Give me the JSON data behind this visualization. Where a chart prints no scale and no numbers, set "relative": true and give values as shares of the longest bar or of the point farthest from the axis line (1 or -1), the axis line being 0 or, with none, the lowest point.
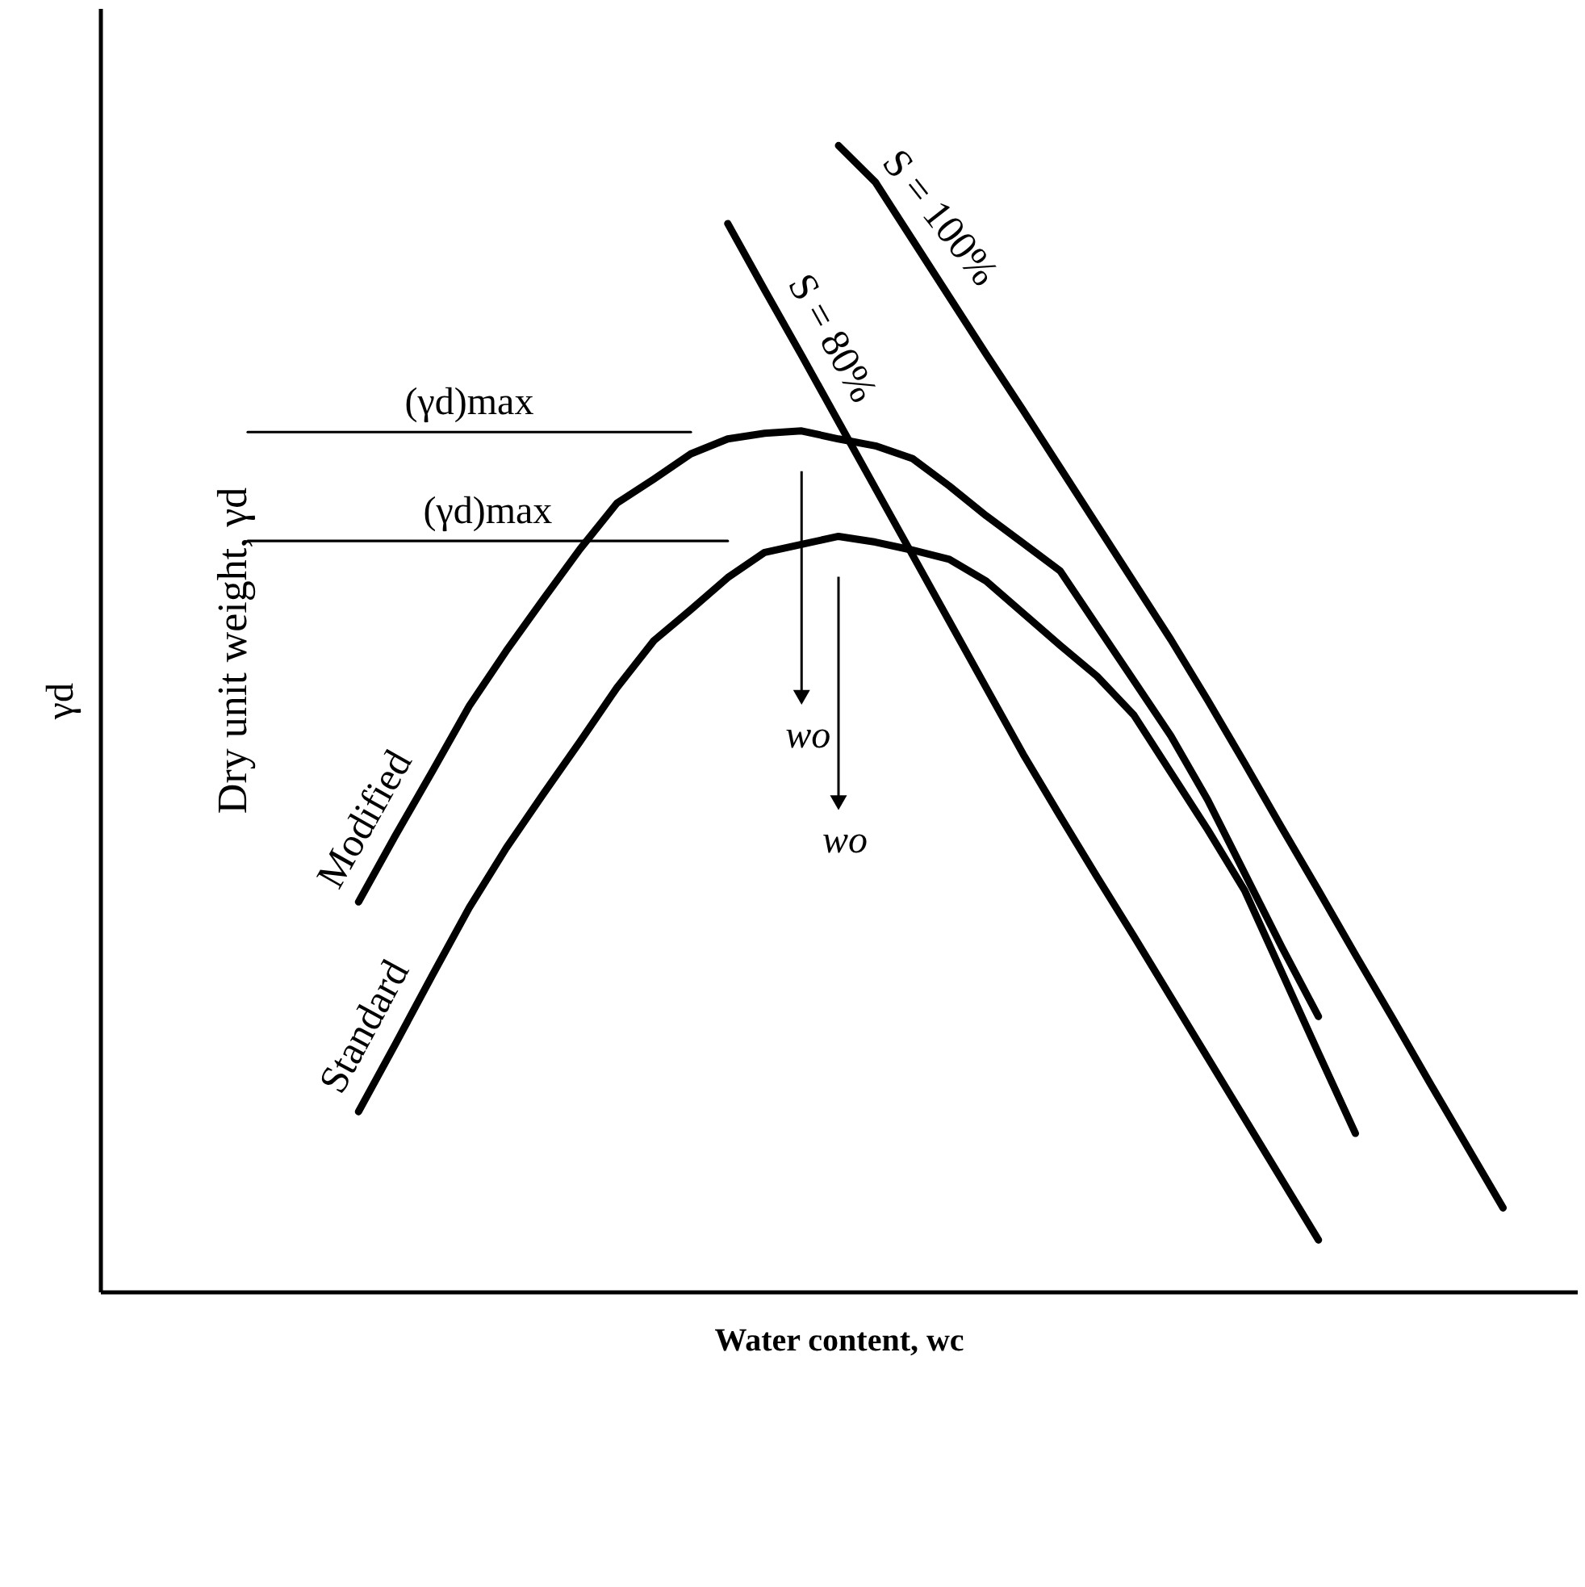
{
  "chart_data": {
    "type": "line",
    "relative": true,
    "xlabel": "Water content, wc",
    "ylabel": "Dry unit weight, γd",
    "categories": [
      null,
      null,
      null,
      null,
      null,
      null,
      null,
      null,
      null,
      null,
      null,
      null,
      null,
      null,
      null,
      null,
      null,
      null,
      null,
      null,
      null,
      null,
      null,
      null,
      null,
      null,
      null,
      null,
      null,
      null,
      null,
      null,
      null,
      null,
      null,
      null,
      null,
      null,
      null,
      null,
      null
    ],
    "legend": false,
    "marker": "none",
    "line_style": "solid",
    "series": [
      {
        "name": "Modified",
        "color": "#000000",
        "values": [
          null,
          null,
          null,
          null,
          null,
          null,
          null,
          0.34,
          0.398,
          0.454,
          0.511,
          0.559,
          0.604,
          0.648,
          0.688,
          0.709,
          0.731,
          0.744,
          0.749,
          0.751,
          0.744,
          0.738,
          0.727,
          0.703,
          0.677,
          0.653,
          0.629,
          0.581,
          0.533,
          0.485,
          0.429,
          0.365,
          0.301,
          0.24,
          null,
          null,
          null,
          null,
          null,
          null,
          null
        ]
      },
      {
        "name": "Standard",
        "color": "#000000",
        "values": [
          null,
          null,
          null,
          null,
          null,
          null,
          null,
          0.157,
          0.216,
          0.276,
          0.335,
          0.387,
          0.434,
          0.48,
          0.527,
          0.568,
          0.595,
          0.623,
          0.645,
          0.652,
          0.659,
          0.654,
          0.647,
          0.639,
          0.62,
          0.592,
          0.564,
          0.537,
          0.503,
          0.453,
          0.403,
          0.35,
          0.279,
          0.208,
          0.138,
          null,
          null,
          null,
          null,
          null,
          null
        ]
      },
      {
        "name": "S = 80%",
        "color": "#000000",
        "values": [
          null,
          null,
          null,
          null,
          null,
          null,
          null,
          null,
          null,
          null,
          null,
          null,
          null,
          null,
          null,
          null,
          null,
          0.932,
          0.874,
          0.817,
          0.759,
          0.701,
          0.643,
          0.585,
          0.527,
          0.469,
          0.415,
          0.362,
          0.31,
          0.257,
          0.204,
          0.151,
          0.098,
          0.045,
          null,
          null,
          null,
          null,
          null,
          null,
          null
        ]
      },
      {
        "name": "S = 100%",
        "color": "#000000",
        "values": [
          null,
          null,
          null,
          null,
          null,
          null,
          null,
          null,
          null,
          null,
          null,
          null,
          null,
          null,
          null,
          null,
          null,
          null,
          null,
          null,
          1.0,
          0.968,
          0.918,
          0.868,
          0.818,
          0.769,
          0.719,
          0.669,
          0.619,
          0.569,
          0.516,
          0.461,
          0.405,
          0.35,
          0.294,
          0.239,
          0.183,
          0.128,
          0.073,
          null,
          null
        ]
      },
      {
        "color": "#000000",
        "values": [
          null,
          null,
          null,
          null,
          0.75,
          0.75,
          0.75,
          0.75,
          0.75,
          0.75,
          0.75,
          0.75,
          0.75,
          0.75,
          0.75,
          0.75,
          0.75,
          null,
          null,
          null,
          null,
          null,
          null,
          null,
          null,
          null,
          null,
          null,
          null,
          null,
          null,
          null,
          null,
          null,
          null,
          null,
          null,
          null,
          null,
          null,
          null
        ]
      },
      {
        "color": "#000000",
        "values": [
          null,
          null,
          null,
          null,
          0.655,
          0.655,
          0.655,
          0.655,
          0.655,
          0.655,
          0.655,
          0.655,
          0.655,
          0.655,
          0.655,
          0.655,
          0.655,
          0.655,
          null,
          null,
          null,
          null,
          null,
          null,
          null,
          null,
          null,
          null,
          null,
          null,
          null,
          null,
          null,
          null,
          null,
          null,
          null,
          null,
          null,
          null,
          null
        ]
      }
    ],
    "annotations": [
      "(γd)max",
      "(γd)max",
      "wo",
      "wo",
      "γd"
    ]
  }
}
